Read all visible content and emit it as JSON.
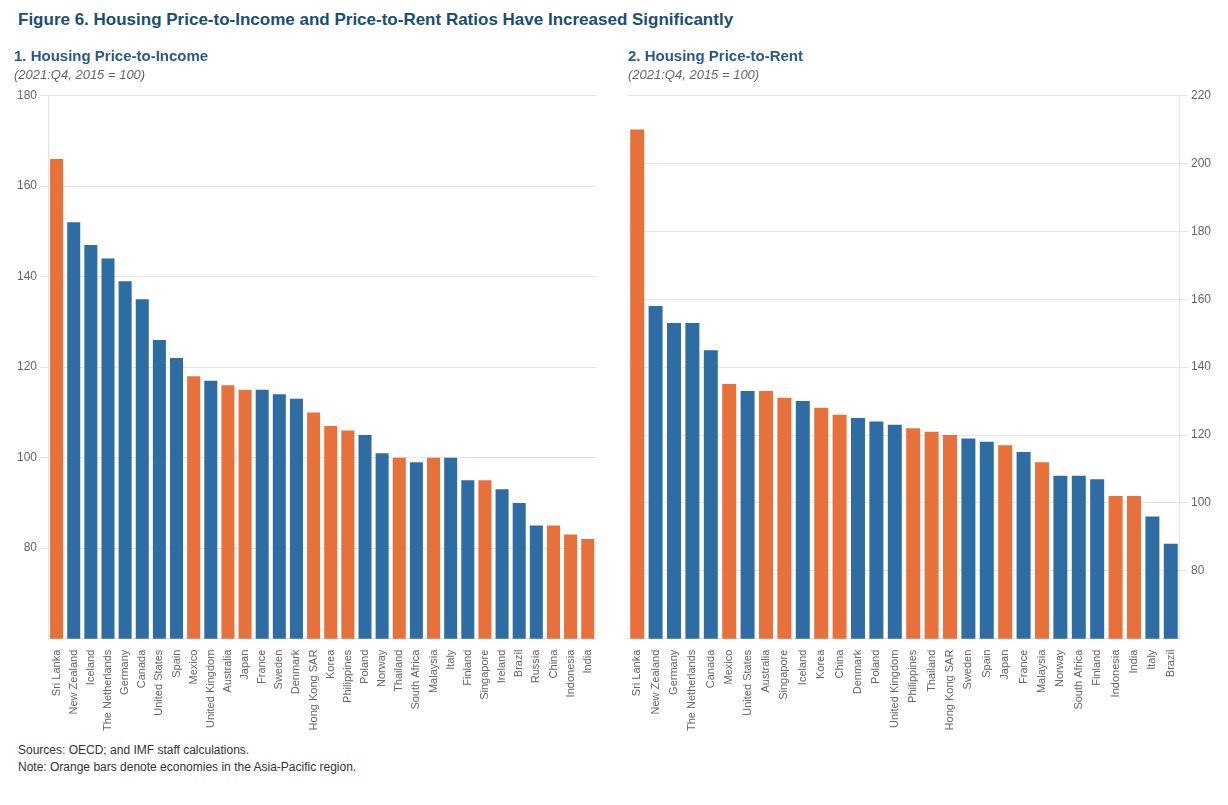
{
  "title": "Figure 6. Housing Price-to-Income and Price-to-Rent Ratios Have Increased Significantly",
  "annotations": [
    "Sources: OECD; and IMF staff calculations.",
    "Note: Orange bars denote economies in the Asia-Pacific region."
  ],
  "chart_data": [
    {
      "type": "bar",
      "title": "1. Housing Price-to-Income",
      "subtitle": "(2021:Q4, 2015 = 100)",
      "categories": [
        "Sri Lanka",
        "New Zealand",
        "Iceland",
        "The Netherlands",
        "Germany",
        "Canada",
        "United States",
        "Spain",
        "Mexico",
        "United Kingdom",
        "Australia",
        "Japan",
        "France",
        "Sweden",
        "Denmark",
        "Hong Kong SAR",
        "Korea",
        "Philippines",
        "Poland",
        "Norway",
        "Thailand",
        "South Africa",
        "Malaysia",
        "Italy",
        "Finland",
        "Singapore",
        "Ireland",
        "Brazil",
        "Russia",
        "China",
        "Indonesia",
        "India"
      ],
      "values": [
        166,
        152,
        147,
        144,
        139,
        135,
        126,
        122,
        118,
        117,
        116,
        115,
        115,
        114,
        113,
        110,
        107,
        106,
        105,
        101,
        100,
        99,
        100,
        100,
        95,
        95,
        93,
        90,
        85,
        85,
        83,
        82
      ],
      "colors": [
        "#E8703A",
        "#2E6DA4",
        "#2E6DA4",
        "#2E6DA4",
        "#2E6DA4",
        "#2E6DA4",
        "#2E6DA4",
        "#2E6DA4",
        "#E8703A",
        "#2E6DA4",
        "#E8703A",
        "#E8703A",
        "#2E6DA4",
        "#2E6DA4",
        "#2E6DA4",
        "#E8703A",
        "#E8703A",
        "#E8703A",
        "#2E6DA4",
        "#2E6DA4",
        "#E8703A",
        "#2E6DA4",
        "#E8703A",
        "#2E6DA4",
        "#2E6DA4",
        "#E8703A",
        "#2E6DA4",
        "#2E6DA4",
        "#2E6DA4",
        "#E8703A",
        "#E8703A",
        "#E8703A"
      ],
      "ylim": [
        60,
        180
      ],
      "yticks": [
        80,
        100,
        120,
        140,
        160,
        180
      ],
      "grid": true
    },
    {
      "type": "bar",
      "title": "2. Housing Price-to-Rent",
      "subtitle": "(2021:Q4, 2015 = 100)",
      "categories": [
        "Sri Lanka",
        "New Zealand",
        "Germany",
        "The Netherlands",
        "Canada",
        "Mexico",
        "United States",
        "Australia",
        "Singapore",
        "Iceland",
        "Korea",
        "China",
        "Denmark",
        "Poland",
        "United Kingdom",
        "Philippines",
        "Thailand",
        "Hong Kong SAR",
        "Sweden",
        "Spain",
        "Japan",
        "France",
        "Malaysia",
        "Norway",
        "South Africa",
        "Finland",
        "Indonesia",
        "India",
        "Italy",
        "Brazil"
      ],
      "values": [
        210,
        158,
        153,
        153,
        145,
        135,
        133,
        133,
        131,
        130,
        128,
        126,
        125,
        124,
        123,
        122,
        121,
        120,
        119,
        118,
        117,
        115,
        112,
        108,
        108,
        107,
        102,
        102,
        96,
        88
      ],
      "colors": [
        "#E8703A",
        "#2E6DA4",
        "#2E6DA4",
        "#2E6DA4",
        "#2E6DA4",
        "#E8703A",
        "#2E6DA4",
        "#E8703A",
        "#E8703A",
        "#2E6DA4",
        "#E8703A",
        "#E8703A",
        "#2E6DA4",
        "#2E6DA4",
        "#2E6DA4",
        "#E8703A",
        "#E8703A",
        "#E8703A",
        "#2E6DA4",
        "#2E6DA4",
        "#E8703A",
        "#2E6DA4",
        "#E8703A",
        "#2E6DA4",
        "#2E6DA4",
        "#2E6DA4",
        "#E8703A",
        "#E8703A",
        "#2E6DA4",
        "#2E6DA4"
      ],
      "ylim": [
        60,
        220
      ],
      "yticks": [
        80,
        100,
        120,
        140,
        160,
        180,
        200,
        220
      ],
      "grid": true
    }
  ]
}
